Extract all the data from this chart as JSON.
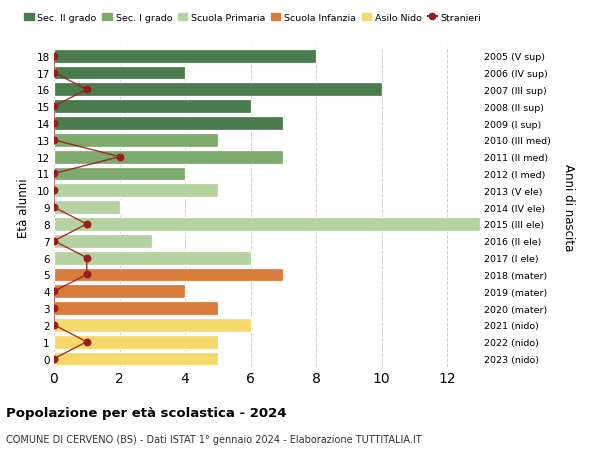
{
  "ages": [
    18,
    17,
    16,
    15,
    14,
    13,
    12,
    11,
    10,
    9,
    8,
    7,
    6,
    5,
    4,
    3,
    2,
    1,
    0
  ],
  "years_labels": [
    "2005 (V sup)",
    "2006 (IV sup)",
    "2007 (III sup)",
    "2008 (II sup)",
    "2009 (I sup)",
    "2010 (III med)",
    "2011 (II med)",
    "2012 (I med)",
    "2013 (V ele)",
    "2014 (IV ele)",
    "2015 (III ele)",
    "2016 (II ele)",
    "2017 (I ele)",
    "2018 (mater)",
    "2019 (mater)",
    "2020 (mater)",
    "2021 (nido)",
    "2022 (nido)",
    "2023 (nido)"
  ],
  "bar_values": [
    8,
    4,
    10,
    6,
    7,
    5,
    7,
    4,
    5,
    2,
    13,
    3,
    6,
    7,
    4,
    5,
    6,
    5,
    5
  ],
  "bar_colors": [
    "#4a7c4e",
    "#4a7c4e",
    "#4a7c4e",
    "#4a7c4e",
    "#4a7c4e",
    "#7dab6b",
    "#7dab6b",
    "#7dab6b",
    "#b5d3a0",
    "#b5d3a0",
    "#b5d3a0",
    "#b5d3a0",
    "#b5d3a0",
    "#d97b3a",
    "#d97b3a",
    "#d97b3a",
    "#f7d96b",
    "#f7d96b",
    "#f7d96b"
  ],
  "stranieri_values": [
    0,
    0,
    1,
    0,
    0,
    0,
    2,
    0,
    0,
    0,
    1,
    0,
    1,
    1,
    0,
    0,
    0,
    1,
    0
  ],
  "stranieri_color": "#9b1c1c",
  "legend_labels": [
    "Sec. II grado",
    "Sec. I grado",
    "Scuola Primaria",
    "Scuola Infanzia",
    "Asilo Nido",
    "Stranieri"
  ],
  "legend_colors": [
    "#4a7c4e",
    "#7dab6b",
    "#b5d3a0",
    "#d97b3a",
    "#f7d96b",
    "#9b1c1c"
  ],
  "ylabel_left": "Età alunni",
  "ylabel_right": "Anni di nascita",
  "title": "Popolazione per età scolastica - 2024",
  "subtitle": "COMUNE DI CERVENO (BS) - Dati ISTAT 1° gennaio 2024 - Elaborazione TUTTITALIA.IT",
  "xlim": [
    0,
    13
  ],
  "xticks": [
    0,
    2,
    4,
    6,
    8,
    10,
    12
  ],
  "background_color": "#ffffff",
  "grid_color": "#cccccc"
}
